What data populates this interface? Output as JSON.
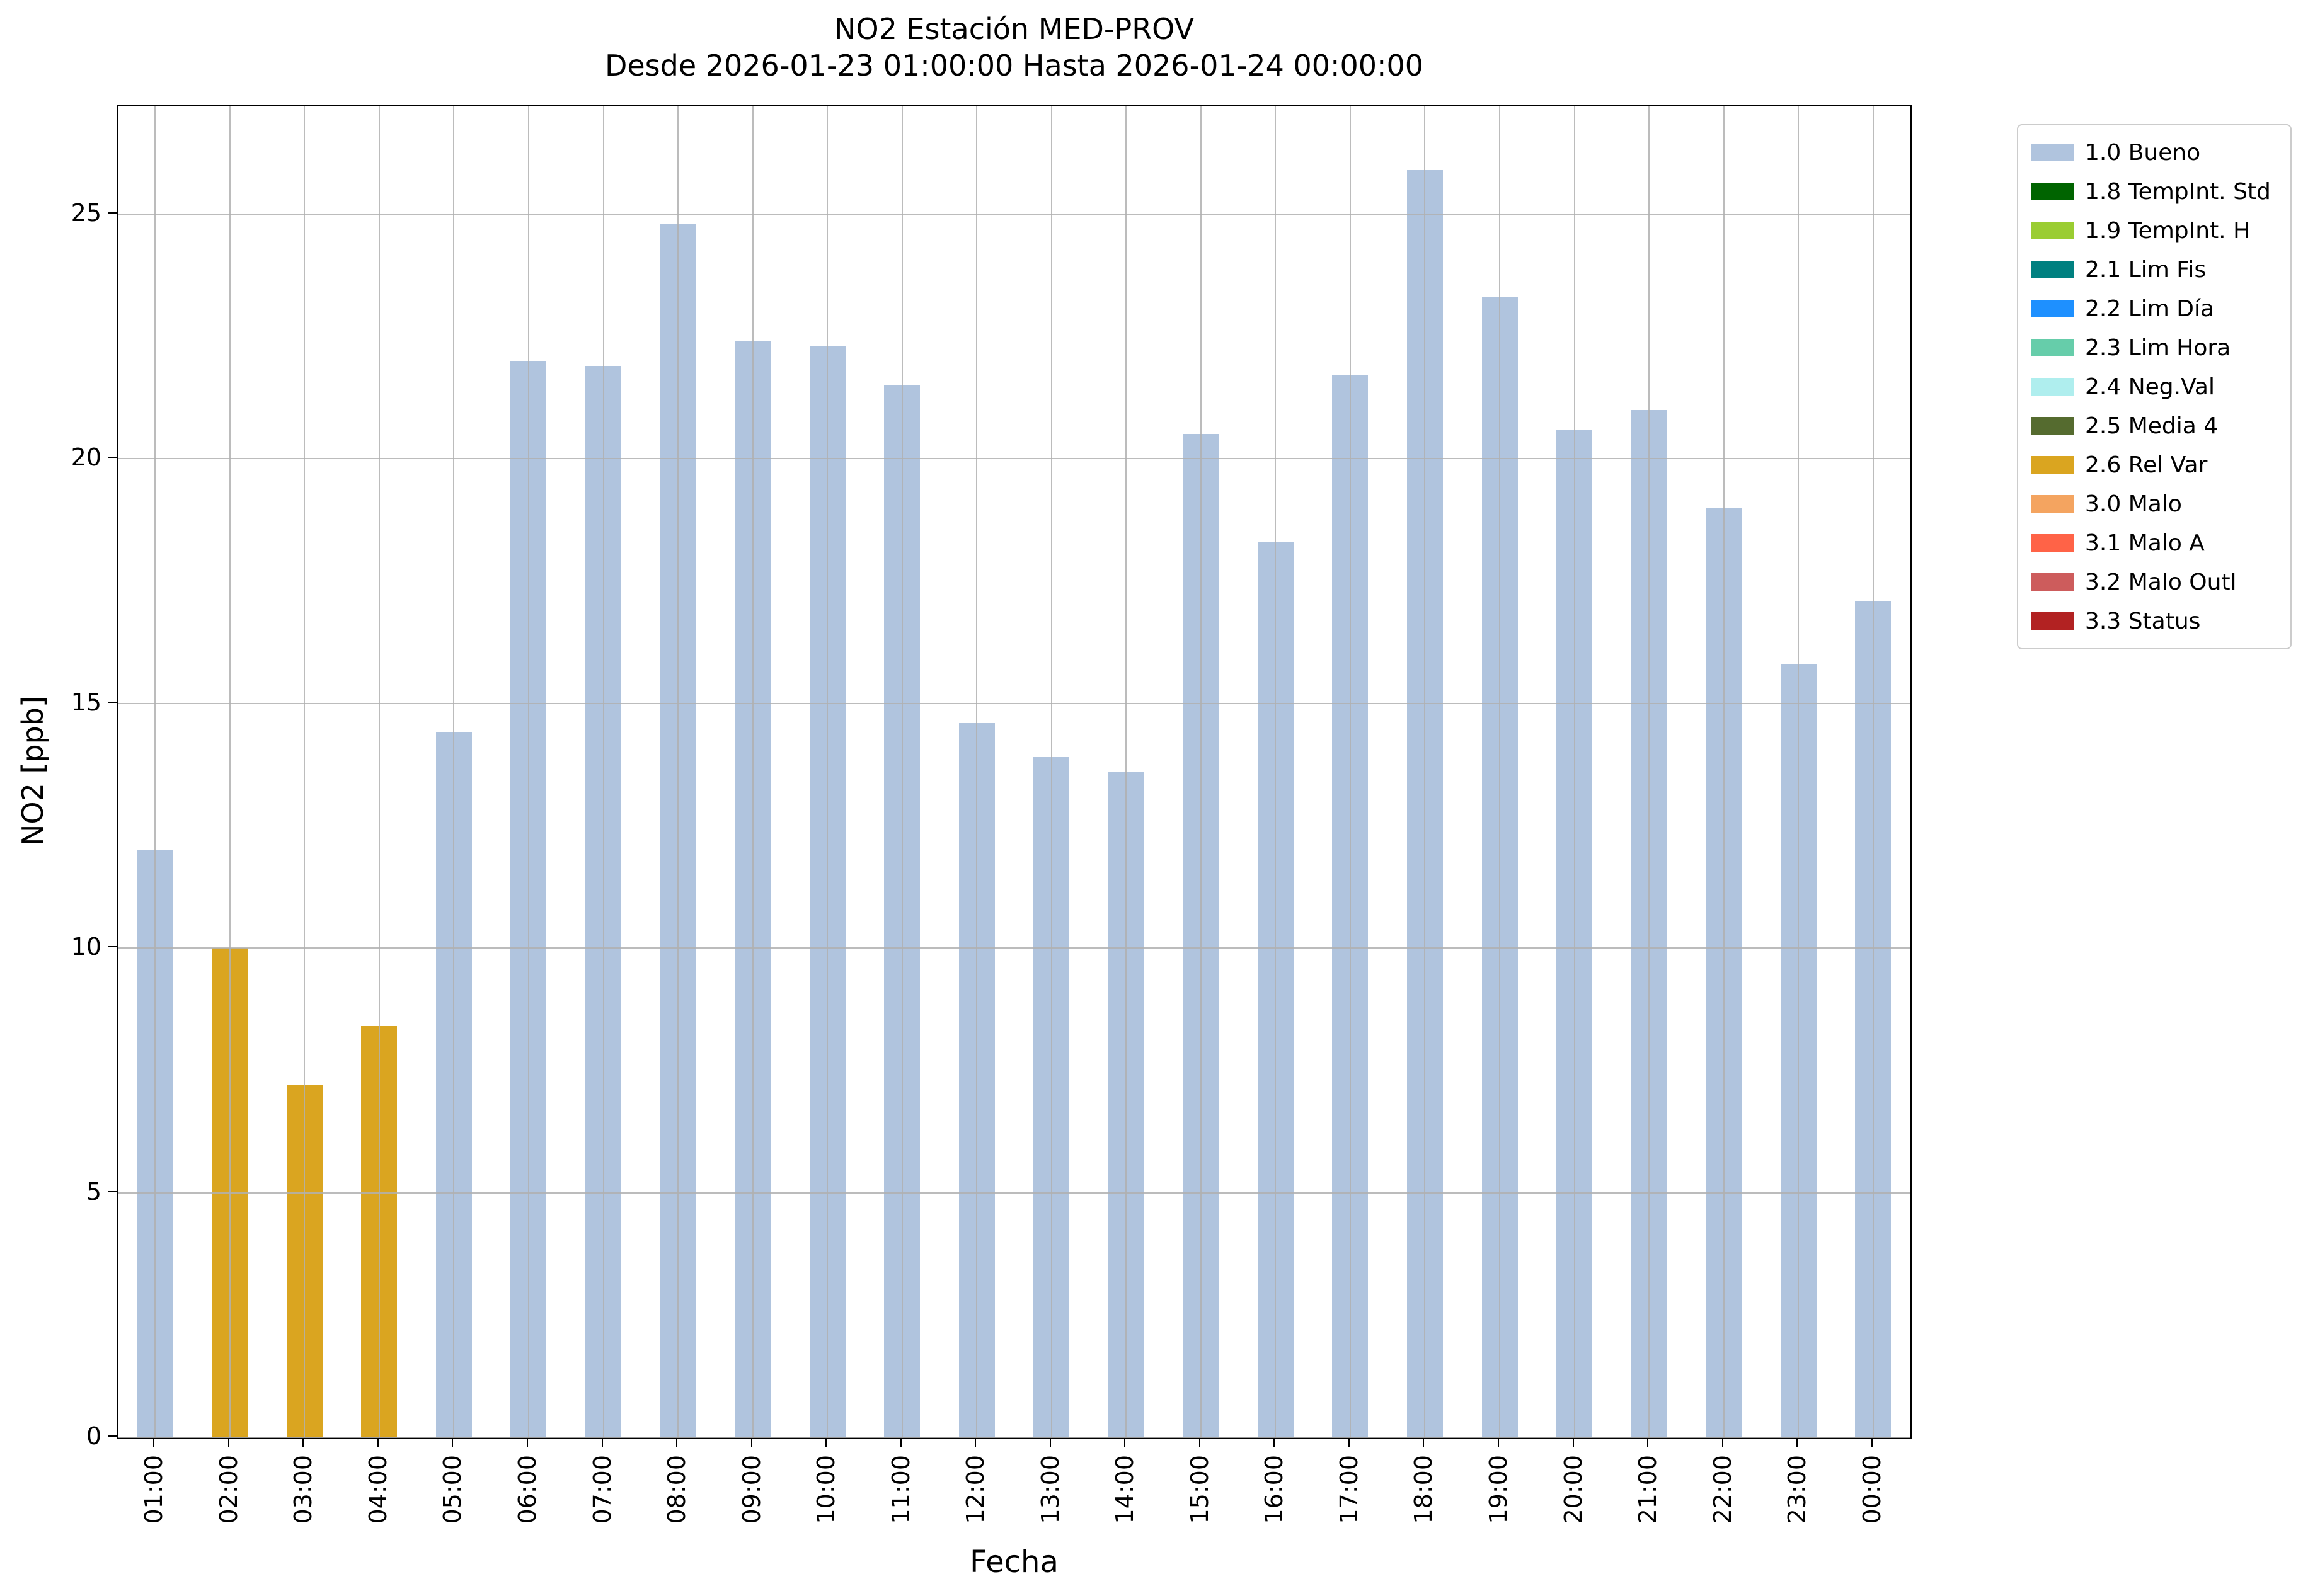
{
  "chart_data": {
    "type": "bar",
    "title": "NO2 Estación MED-PROV",
    "subtitle": "Desde 2026-01-23 01:00:00 Hasta 2026-01-24 00:00:00",
    "xlabel": "Fecha",
    "ylabel": "NO2 [ppb]",
    "ylim": [
      0,
      27.2
    ],
    "yticks": [
      0,
      5,
      10,
      15,
      20,
      25
    ],
    "grid": true,
    "legend_position": "outside-right-top",
    "categories": [
      "01:00",
      "02:00",
      "03:00",
      "04:00",
      "05:00",
      "06:00",
      "07:00",
      "08:00",
      "09:00",
      "10:00",
      "11:00",
      "12:00",
      "13:00",
      "14:00",
      "15:00",
      "16:00",
      "17:00",
      "18:00",
      "19:00",
      "20:00",
      "21:00",
      "22:00",
      "23:00",
      "00:00"
    ],
    "values": [
      12.0,
      10.0,
      7.2,
      8.4,
      14.4,
      22.0,
      21.9,
      24.8,
      22.4,
      22.3,
      21.5,
      14.6,
      13.9,
      13.6,
      20.5,
      18.3,
      21.7,
      25.9,
      23.3,
      20.6,
      21.0,
      19.0,
      15.8,
      17.1
    ],
    "bar_status": [
      "1.0 Bueno",
      "2.6 Rel Var",
      "2.6 Rel Var",
      "2.6 Rel Var",
      "1.0 Bueno",
      "1.0 Bueno",
      "1.0 Bueno",
      "1.0 Bueno",
      "1.0 Bueno",
      "1.0 Bueno",
      "1.0 Bueno",
      "1.0 Bueno",
      "1.0 Bueno",
      "1.0 Bueno",
      "1.0 Bueno",
      "1.0 Bueno",
      "1.0 Bueno",
      "1.0 Bueno",
      "1.0 Bueno",
      "1.0 Bueno",
      "1.0 Bueno",
      "1.0 Bueno",
      "1.0 Bueno",
      "1.0 Bueno"
    ],
    "legend": [
      {
        "label": "1.0 Bueno",
        "color": "#b0c4de"
      },
      {
        "label": "1.8 TempInt. Std",
        "color": "#006400"
      },
      {
        "label": "1.9 TempInt. H",
        "color": "#9acd32"
      },
      {
        "label": "2.1 Lim Fis",
        "color": "#008080"
      },
      {
        "label": "2.2 Lim Día",
        "color": "#1e90ff"
      },
      {
        "label": "2.3 Lim Hora",
        "color": "#66cdaa"
      },
      {
        "label": "2.4 Neg.Val",
        "color": "#afeeee"
      },
      {
        "label": "2.5 Media 4",
        "color": "#556b2f"
      },
      {
        "label": "2.6 Rel Var",
        "color": "#daa520"
      },
      {
        "label": "3.0 Malo",
        "color": "#f4a460"
      },
      {
        "label": "3.1 Malo A",
        "color": "#ff6347"
      },
      {
        "label": "3.2 Malo Outl",
        "color": "#cd5c5c"
      },
      {
        "label": "3.3 Status",
        "color": "#b22222"
      }
    ]
  }
}
